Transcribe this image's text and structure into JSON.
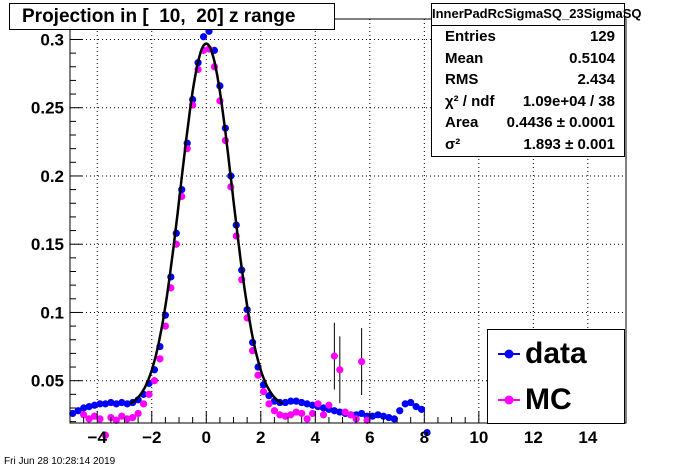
{
  "title": "Projection in [  10,  20] z range",
  "stats": {
    "name": "InnerPadRcSigmaSQ_23SigmaSQ",
    "rows": [
      {
        "label": "Entries",
        "value": "129"
      },
      {
        "label": "Mean",
        "value": "0.5104"
      },
      {
        "label": "RMS",
        "value": "2.434"
      },
      {
        "label": "χ² / ndf",
        "value": "1.09e+04 / 38"
      },
      {
        "label": "Area",
        "value": "0.4436 ± 0.0001"
      },
      {
        "label": "σ²",
        "value": "1.893 ± 0.001"
      }
    ]
  },
  "legend": {
    "items": [
      {
        "label": "data",
        "color": "#0000ff"
      },
      {
        "label": "MC",
        "color": "#ff00ff"
      }
    ]
  },
  "datestamp": "Fri Jun 28 10:28:14 2019",
  "chart_data": {
    "type": "scatter",
    "xlim": [
      -5,
      15.4
    ],
    "ylim": [
      0.019,
      0.315
    ],
    "xticks": [
      -4,
      -2,
      0,
      2,
      4,
      6,
      8,
      10,
      12,
      14
    ],
    "yticks": [
      0.05,
      0.1,
      0.15,
      0.2,
      0.25,
      0.3
    ],
    "grid": true,
    "legend_position": "bottom-right",
    "fit": {
      "type": "gaussian",
      "amplitude": 0.297,
      "mean": 0.0,
      "sigma": 0.94,
      "baseline": 0.03
    },
    "series": [
      {
        "name": "data",
        "color": "#0000ff",
        "x": [
          -4.9,
          -4.7,
          -4.5,
          -4.3,
          -4.1,
          -3.9,
          -3.7,
          -3.5,
          -3.3,
          -3.1,
          -2.9,
          -2.7,
          -2.5,
          -2.3,
          -2.1,
          -1.9,
          -1.7,
          -1.5,
          -1.3,
          -1.1,
          -0.9,
          -0.7,
          -0.5,
          -0.3,
          -0.1,
          0.1,
          0.3,
          0.5,
          0.7,
          0.9,
          1.1,
          1.3,
          1.5,
          1.7,
          1.9,
          2.1,
          2.3,
          2.5,
          2.7,
          2.9,
          3.1,
          3.3,
          3.5,
          3.7,
          3.9,
          4.1,
          4.3,
          4.5,
          4.7,
          4.9,
          5.1,
          5.3,
          5.5,
          5.7,
          5.9,
          6.1,
          6.3,
          6.5,
          6.7,
          6.9,
          7.1,
          7.3,
          7.5,
          7.7,
          7.9,
          8.1
        ],
        "y": [
          0.026,
          0.028,
          0.03,
          0.031,
          0.032,
          0.033,
          0.033,
          0.034,
          0.033,
          0.034,
          0.033,
          0.034,
          0.036,
          0.04,
          0.048,
          0.058,
          0.075,
          0.098,
          0.126,
          0.158,
          0.19,
          0.224,
          0.256,
          0.283,
          0.302,
          0.306,
          0.292,
          0.266,
          0.235,
          0.2,
          0.164,
          0.131,
          0.102,
          0.078,
          0.06,
          0.047,
          0.039,
          0.035,
          0.034,
          0.034,
          0.035,
          0.035,
          0.034,
          0.033,
          0.032,
          0.031,
          0.03,
          0.029,
          0.028,
          0.027,
          0.026,
          0.025,
          0.025,
          0.026,
          0.024,
          0.024,
          0.025,
          0.024,
          0.023,
          0.022,
          0.028,
          0.033,
          0.034,
          0.031,
          0.029,
          0.012
        ]
      },
      {
        "name": "MC",
        "color": "#ff00ff",
        "x": [
          -4.5,
          -4.3,
          -4.1,
          -3.9,
          -3.7,
          -3.5,
          -3.3,
          -3.1,
          -2.9,
          -2.7,
          -2.5,
          -2.3,
          -2.1,
          -1.9,
          -1.7,
          -1.5,
          -1.3,
          -1.1,
          -0.9,
          -0.7,
          -0.5,
          -0.3,
          -0.1,
          0.1,
          0.3,
          0.5,
          0.7,
          0.9,
          1.1,
          1.3,
          1.5,
          1.7,
          1.9,
          2.1,
          2.3,
          2.5,
          2.7,
          2.9,
          3.1,
          3.3,
          3.5,
          3.7,
          3.9,
          4.1,
          4.3,
          4.5,
          4.7,
          4.9,
          5.1,
          5.3,
          5.5,
          5.7,
          5.9
        ],
        "y": [
          0.025,
          0.022,
          0.024,
          0.022,
          0.01,
          0.023,
          0.021,
          0.024,
          0.022,
          0.023,
          0.026,
          0.033,
          0.04,
          0.05,
          0.066,
          0.09,
          0.118,
          0.15,
          0.185,
          0.22,
          0.252,
          0.278,
          0.292,
          0.293,
          0.28,
          0.255,
          0.226,
          0.192,
          0.156,
          0.124,
          0.096,
          0.072,
          0.054,
          0.042,
          0.033,
          0.028,
          0.025,
          0.024,
          0.025,
          0.027,
          0.026,
          0.022,
          0.026,
          0.033,
          0.025,
          0.032,
          0.068,
          0.058,
          0.027,
          0.025,
          0.022,
          0.064,
          0.021
        ]
      }
    ]
  }
}
